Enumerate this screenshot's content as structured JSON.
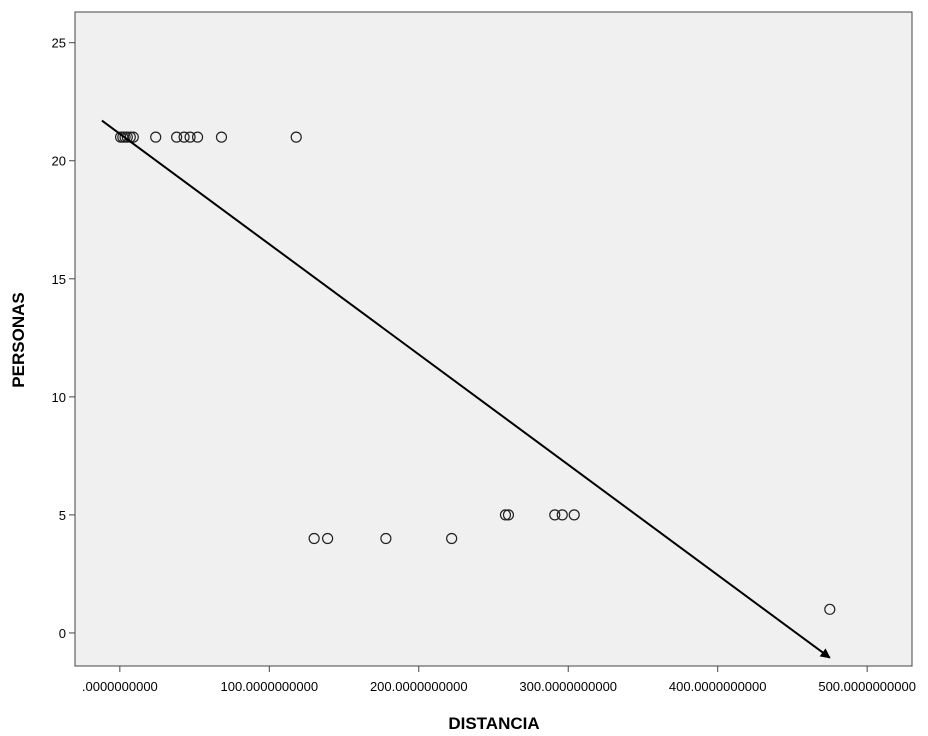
{
  "chart_data": {
    "type": "scatter",
    "xlabel": "DISTANCIA",
    "ylabel": "PERSONAS",
    "xlim": [
      -30,
      530
    ],
    "ylim": [
      -1.4,
      26.3
    ],
    "xticks": [
      0,
      100,
      200,
      300,
      400,
      500
    ],
    "xtick_labels": [
      ".0000000000",
      "100.0000000000",
      "200.0000000000",
      "300.0000000000",
      "400.0000000000",
      "500.0000000000"
    ],
    "yticks": [
      0,
      5,
      10,
      15,
      20,
      25
    ],
    "ytick_labels": [
      "0",
      "5",
      "10",
      "15",
      "20",
      "25"
    ],
    "grid": false,
    "plot_background": "#f0f0f0",
    "marker": "hollow-circle",
    "points": [
      {
        "x": 0.5,
        "y": 21
      },
      {
        "x": 2,
        "y": 21
      },
      {
        "x": 3.5,
        "y": 21
      },
      {
        "x": 5,
        "y": 21
      },
      {
        "x": 7,
        "y": 21
      },
      {
        "x": 9,
        "y": 21
      },
      {
        "x": 24,
        "y": 21
      },
      {
        "x": 38,
        "y": 21
      },
      {
        "x": 43,
        "y": 21
      },
      {
        "x": 47,
        "y": 21
      },
      {
        "x": 52,
        "y": 21
      },
      {
        "x": 68,
        "y": 21
      },
      {
        "x": 118,
        "y": 21
      },
      {
        "x": 130,
        "y": 4
      },
      {
        "x": 139,
        "y": 4
      },
      {
        "x": 178,
        "y": 4
      },
      {
        "x": 222,
        "y": 4
      },
      {
        "x": 258,
        "y": 5
      },
      {
        "x": 260,
        "y": 5
      },
      {
        "x": 291,
        "y": 5
      },
      {
        "x": 296,
        "y": 5
      },
      {
        "x": 304,
        "y": 5
      },
      {
        "x": 475,
        "y": 1
      }
    ],
    "annotations": [
      {
        "type": "arrow",
        "from": {
          "x": -12,
          "y": 21.7
        },
        "to": {
          "x": 475,
          "y": -1.05
        }
      }
    ]
  }
}
